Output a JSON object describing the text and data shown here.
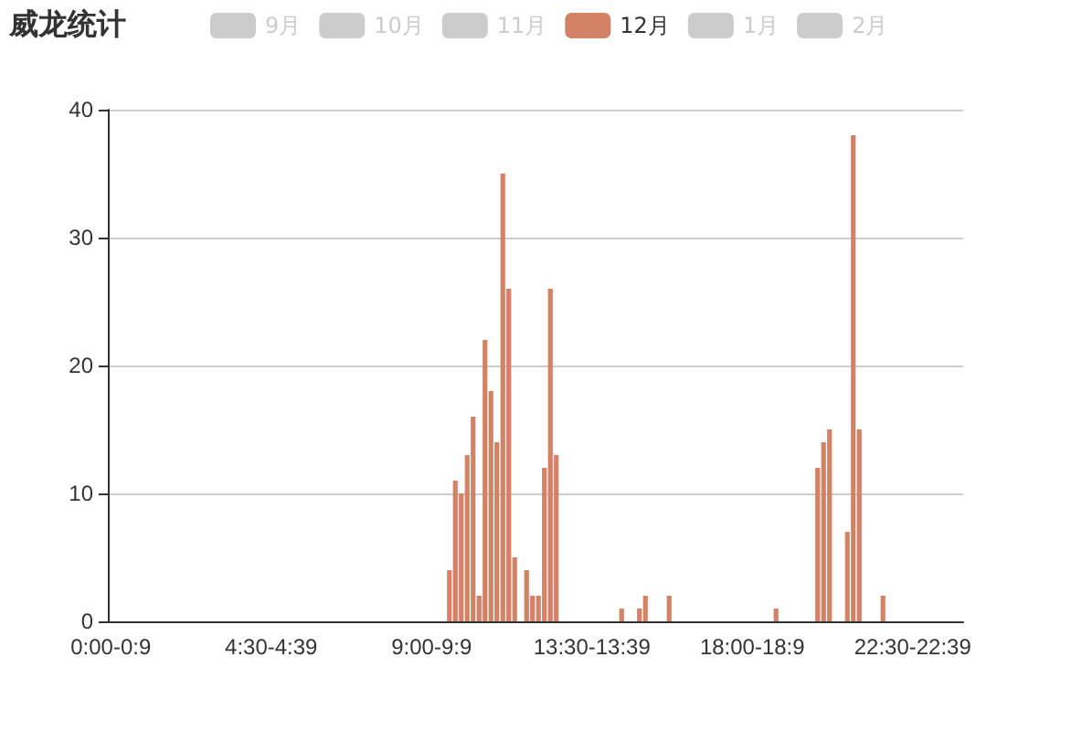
{
  "chart_data": {
    "type": "bar",
    "title": "威龙统计",
    "legend": "top",
    "grid": "y",
    "ylim": [
      0,
      40
    ],
    "yticks": [
      0,
      10,
      20,
      30,
      40
    ],
    "categories": [
      "0:00-0:9",
      null,
      null,
      null,
      null,
      null,
      null,
      null,
      null,
      null,
      null,
      null,
      null,
      null,
      null,
      null,
      null,
      null,
      null,
      null,
      null,
      null,
      null,
      null,
      null,
      null,
      null,
      "4:30-4:39",
      null,
      null,
      null,
      null,
      null,
      null,
      null,
      null,
      null,
      null,
      null,
      null,
      null,
      null,
      null,
      null,
      null,
      null,
      null,
      null,
      null,
      null,
      null,
      null,
      null,
      null,
      "9:00-9:9",
      null,
      null,
      null,
      null,
      null,
      null,
      null,
      null,
      null,
      null,
      null,
      null,
      null,
      null,
      null,
      null,
      null,
      null,
      null,
      null,
      null,
      null,
      null,
      null,
      null,
      null,
      "13:30-13:39",
      null,
      null,
      null,
      null,
      null,
      null,
      null,
      null,
      null,
      null,
      null,
      null,
      null,
      null,
      null,
      null,
      null,
      null,
      null,
      null,
      null,
      null,
      null,
      null,
      null,
      null,
      "18:00-18:9",
      null,
      null,
      null,
      null,
      null,
      null,
      null,
      null,
      null,
      null,
      null,
      null,
      null,
      null,
      null,
      null,
      null,
      null,
      null,
      null,
      null,
      null,
      null,
      null,
      null,
      null,
      "22:30-22:39",
      null,
      null,
      null,
      null,
      null,
      null,
      null,
      null
    ],
    "series": [
      {
        "name": "9月",
        "color": "#cccccc",
        "values": [
          null,
          null,
          null,
          null,
          null,
          null,
          null,
          null,
          null,
          null,
          null,
          null,
          null,
          null,
          null,
          null,
          null,
          null,
          null,
          null,
          null,
          null,
          null,
          null,
          null,
          null,
          null,
          null,
          null,
          null,
          null,
          null,
          null,
          null,
          null,
          null,
          null,
          null,
          null,
          null,
          null,
          null,
          null,
          null,
          null,
          null,
          null,
          null,
          null,
          null,
          null,
          null,
          null,
          null,
          null,
          null,
          null,
          null,
          null,
          null,
          null,
          null,
          null,
          null,
          null,
          null,
          null,
          null,
          null,
          null,
          null,
          null,
          null,
          null,
          null,
          null,
          null,
          null,
          null,
          null,
          null,
          null,
          null,
          null,
          null,
          null,
          null,
          null,
          null,
          null,
          null,
          null,
          null,
          null,
          null,
          null,
          null,
          null,
          null,
          null,
          null,
          null,
          null,
          null,
          null,
          null,
          null,
          null,
          null,
          null,
          null,
          null,
          null,
          null,
          null,
          null,
          null,
          null,
          null,
          null,
          null,
          null,
          null,
          null,
          null,
          null,
          null,
          null,
          null,
          null,
          null,
          null,
          null,
          null,
          null,
          null,
          null,
          null,
          null,
          null,
          null,
          null,
          null,
          null
        ]
      },
      {
        "name": "10月",
        "color": "#cccccc",
        "values": [
          null,
          null,
          null,
          null,
          null,
          null,
          null,
          null,
          null,
          null,
          null,
          null,
          null,
          null,
          null,
          null,
          null,
          null,
          null,
          null,
          null,
          null,
          null,
          null,
          null,
          null,
          null,
          null,
          null,
          null,
          null,
          null,
          null,
          null,
          null,
          null,
          null,
          null,
          null,
          null,
          null,
          null,
          null,
          null,
          null,
          null,
          null,
          null,
          null,
          null,
          null,
          null,
          null,
          null,
          null,
          null,
          null,
          null,
          null,
          null,
          null,
          null,
          null,
          null,
          null,
          null,
          null,
          null,
          null,
          null,
          null,
          null,
          null,
          null,
          null,
          null,
          null,
          null,
          null,
          null,
          null,
          null,
          null,
          null,
          null,
          null,
          null,
          null,
          null,
          null,
          null,
          null,
          null,
          null,
          null,
          null,
          null,
          null,
          null,
          null,
          null,
          null,
          null,
          null,
          null,
          null,
          null,
          null,
          null,
          null,
          null,
          null,
          null,
          null,
          null,
          null,
          null,
          null,
          null,
          null,
          null,
          null,
          null,
          null,
          null,
          null,
          null,
          null,
          null,
          null,
          null,
          null,
          null,
          null,
          null,
          null,
          null,
          null,
          null,
          null,
          null,
          null,
          null,
          null
        ]
      },
      {
        "name": "11月",
        "color": "#cccccc",
        "values": [
          null,
          null,
          null,
          null,
          null,
          null,
          null,
          null,
          null,
          null,
          null,
          null,
          null,
          null,
          null,
          null,
          null,
          null,
          null,
          null,
          null,
          null,
          null,
          null,
          null,
          null,
          null,
          null,
          null,
          null,
          null,
          null,
          null,
          null,
          null,
          null,
          null,
          null,
          null,
          null,
          null,
          null,
          null,
          null,
          null,
          null,
          null,
          null,
          null,
          null,
          null,
          null,
          null,
          null,
          null,
          null,
          null,
          null,
          null,
          null,
          null,
          null,
          null,
          null,
          null,
          null,
          null,
          null,
          null,
          null,
          null,
          null,
          null,
          null,
          null,
          null,
          null,
          null,
          null,
          null,
          null,
          null,
          null,
          null,
          null,
          null,
          null,
          null,
          null,
          null,
          null,
          null,
          null,
          null,
          null,
          null,
          null,
          null,
          null,
          null,
          null,
          null,
          null,
          null,
          null,
          null,
          null,
          null,
          null,
          null,
          null,
          null,
          null,
          null,
          null,
          null,
          null,
          null,
          null,
          null,
          null,
          null,
          null,
          null,
          null,
          null,
          null,
          null,
          null,
          null,
          null,
          null,
          null,
          null,
          null,
          null,
          null,
          null,
          null,
          null,
          null,
          null,
          null,
          null
        ]
      },
      {
        "name": "12月",
        "color": "#d48265",
        "values": [
          0,
          0,
          0,
          0,
          0,
          0,
          0,
          0,
          0,
          0,
          0,
          0,
          0,
          0,
          0,
          0,
          0,
          0,
          0,
          0,
          0,
          0,
          0,
          0,
          0,
          0,
          0,
          0,
          0,
          0,
          0,
          0,
          0,
          0,
          0,
          0,
          0,
          0,
          0,
          0,
          0,
          0,
          0,
          0,
          0,
          0,
          0,
          0,
          0,
          0,
          0,
          0,
          0,
          0,
          0,
          0,
          0,
          4,
          11,
          10,
          13,
          16,
          2,
          22,
          18,
          14,
          35,
          26,
          5,
          0,
          4,
          2,
          2,
          12,
          26,
          13,
          0,
          0,
          0,
          0,
          0,
          0,
          0,
          0,
          0,
          0,
          1,
          0,
          0,
          1,
          2,
          0,
          0,
          0,
          2,
          0,
          0,
          0,
          0,
          0,
          0,
          0,
          0,
          0,
          0,
          0,
          0,
          0,
          0,
          0,
          0,
          0,
          1,
          0,
          0,
          0,
          0,
          0,
          0,
          12,
          14,
          15,
          0,
          0,
          7,
          38,
          15,
          0,
          0,
          0,
          2,
          0,
          0,
          0,
          0,
          0,
          0,
          0,
          0,
          0,
          0,
          0,
          0,
          0
        ]
      },
      {
        "name": "1月",
        "color": "#cccccc",
        "values": [
          null,
          null,
          null,
          null,
          null,
          null,
          null,
          null,
          null,
          null,
          null,
          null,
          null,
          null,
          null,
          null,
          null,
          null,
          null,
          null,
          null,
          null,
          null,
          null,
          null,
          null,
          null,
          null,
          null,
          null,
          null,
          null,
          null,
          null,
          null,
          null,
          null,
          null,
          null,
          null,
          null,
          null,
          null,
          null,
          null,
          null,
          null,
          null,
          null,
          null,
          null,
          null,
          null,
          null,
          null,
          null,
          null,
          null,
          null,
          null,
          null,
          null,
          null,
          null,
          null,
          null,
          null,
          null,
          null,
          null,
          null,
          null,
          null,
          null,
          null,
          null,
          null,
          null,
          null,
          null,
          null,
          null,
          null,
          null,
          null,
          null,
          null,
          null,
          null,
          null,
          null,
          null,
          null,
          null,
          null,
          null,
          null,
          null,
          null,
          null,
          null,
          null,
          null,
          null,
          null,
          null,
          null,
          null,
          null,
          null,
          null,
          null,
          null,
          null,
          null,
          null,
          null,
          null,
          null,
          null,
          null,
          null,
          null,
          null,
          null,
          null,
          null,
          null,
          null,
          null,
          null,
          null,
          null,
          null,
          null,
          null,
          null,
          null,
          null,
          null,
          null,
          null,
          null,
          null
        ]
      },
      {
        "name": "2月",
        "color": "#cccccc",
        "values": [
          null,
          null,
          null,
          null,
          null,
          null,
          null,
          null,
          null,
          null,
          null,
          null,
          null,
          null,
          null,
          null,
          null,
          null,
          null,
          null,
          null,
          null,
          null,
          null,
          null,
          null,
          null,
          null,
          null,
          null,
          null,
          null,
          null,
          null,
          null,
          null,
          null,
          null,
          null,
          null,
          null,
          null,
          null,
          null,
          null,
          null,
          null,
          null,
          null,
          null,
          null,
          null,
          null,
          null,
          null,
          null,
          null,
          null,
          null,
          null,
          null,
          null,
          null,
          null,
          null,
          null,
          null,
          null,
          null,
          null,
          null,
          null,
          null,
          null,
          null,
          null,
          null,
          null,
          null,
          null,
          null,
          null,
          null,
          null,
          null,
          null,
          null,
          null,
          null,
          null,
          null,
          null,
          null,
          null,
          null,
          null,
          null,
          null,
          null,
          null,
          null,
          null,
          null,
          null,
          null,
          null,
          null,
          null,
          null,
          null,
          null,
          null,
          null,
          null,
          null,
          null,
          null,
          null,
          null,
          null,
          null,
          null,
          null,
          null,
          null,
          null,
          null,
          null,
          null,
          null,
          null,
          null,
          null,
          null,
          null,
          null,
          null,
          null,
          null,
          null,
          null,
          null,
          null,
          null
        ]
      }
    ]
  }
}
